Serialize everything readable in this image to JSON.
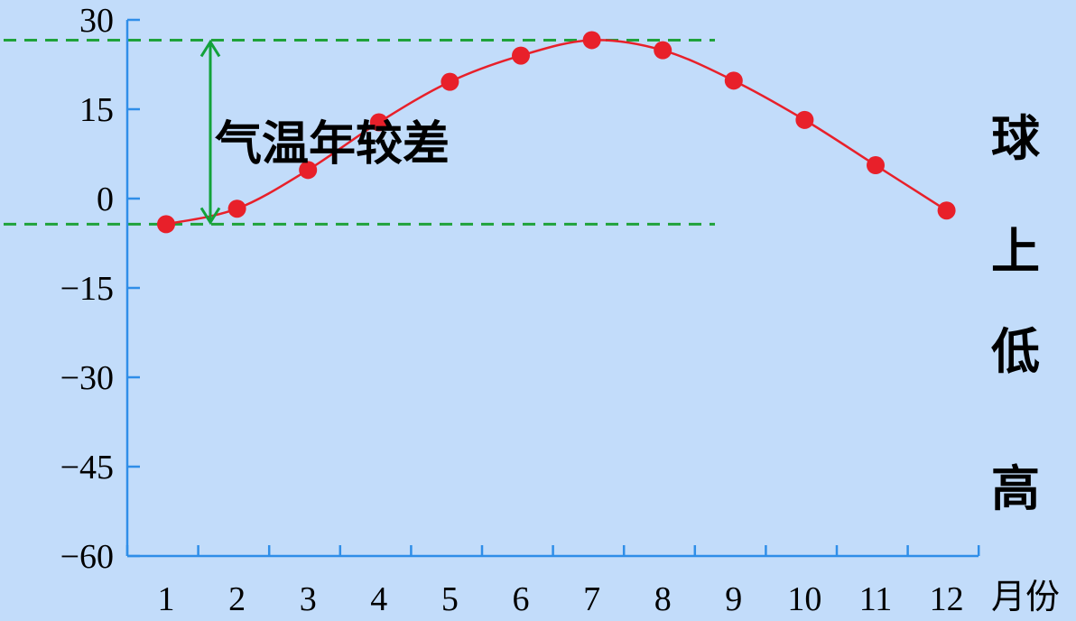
{
  "chart_data": {
    "type": "line",
    "categories": [
      "1",
      "2",
      "3",
      "4",
      "5",
      "6",
      "7",
      "8",
      "9",
      "10",
      "11",
      "12"
    ],
    "series": [
      {
        "values": [
          -4.3,
          -1.7,
          4.8,
          12.8,
          19.6,
          24.0,
          26.6,
          24.9,
          19.8,
          13.2,
          5.6,
          -2.0
        ]
      }
    ],
    "xlabel": "月份",
    "ylabel": "",
    "ylim": [
      -60,
      30
    ],
    "yticks": [
      -60,
      -45,
      -30,
      -15,
      0,
      15,
      30
    ],
    "ytick_labels": [
      "−60",
      "−45",
      "−30",
      "−15",
      "0",
      "15",
      "30"
    ],
    "annotation": "气温年较差",
    "reference_lines": [
      26.6,
      -4.3
    ],
    "colors": {
      "line": "#e8202a",
      "marker": "#e8202a",
      "axis": "#2f8ee8",
      "guide": "#1fa23a",
      "arrow": "#12a23a"
    }
  },
  "side_text": [
    "球",
    "上",
    "低",
    "高"
  ]
}
